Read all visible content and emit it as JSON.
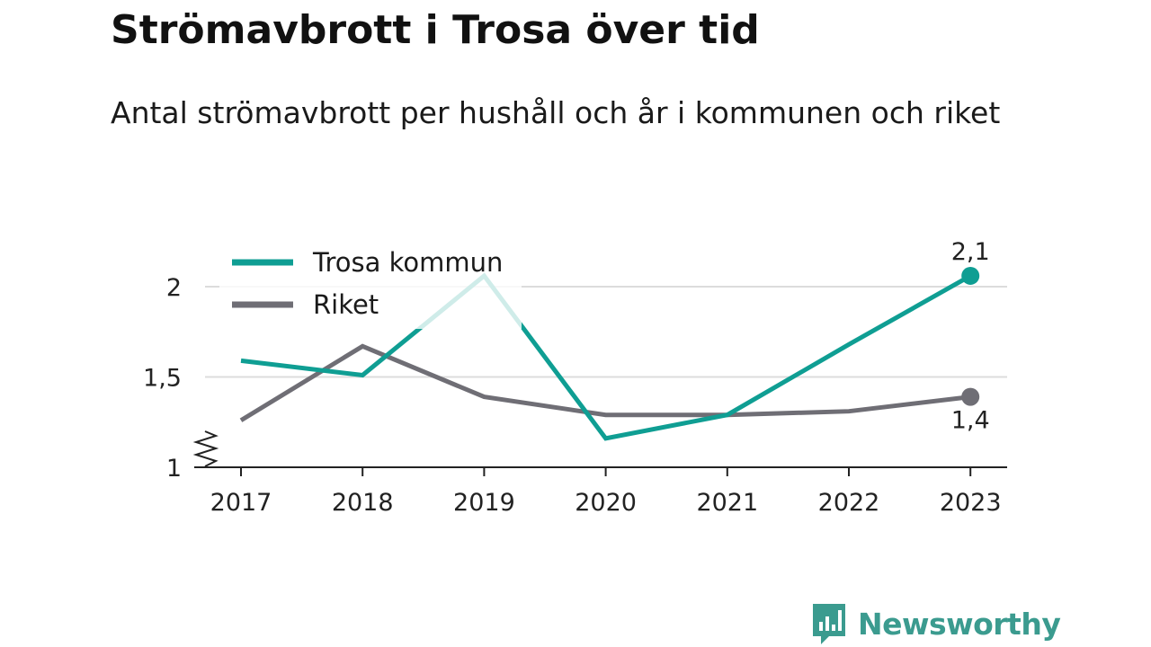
{
  "title": "Strömavbrott i Trosa över tid",
  "subtitle": "Antal strömavbrott per hushåll och år i kommunen och riket",
  "brand": {
    "name": "Newsworthy",
    "logo_icon": "bar-chart-speech-bubble-icon",
    "color": "#3b9b8f"
  },
  "chart_data": {
    "type": "line",
    "categories": [
      "2017",
      "2018",
      "2019",
      "2020",
      "2021",
      "2022",
      "2023"
    ],
    "series": [
      {
        "name": "Trosa kommun",
        "color": "#0f9e93",
        "values": [
          1.59,
          1.51,
          2.06,
          1.16,
          1.29,
          1.68,
          2.06
        ],
        "end_label": "2,1"
      },
      {
        "name": "Riket",
        "color": "#6f6e75",
        "values": [
          1.26,
          1.67,
          1.39,
          1.29,
          1.29,
          1.31,
          1.39
        ],
        "end_label": "1,4"
      }
    ],
    "y_ticks": [
      {
        "value": 1,
        "label": "1"
      },
      {
        "value": 1.5,
        "label": "1,5"
      },
      {
        "value": 2,
        "label": "2"
      }
    ],
    "ylim": [
      1,
      2.05
    ],
    "y_axis_break": true,
    "grid": true,
    "legend_position": "top-left",
    "xlabel": "",
    "ylabel": ""
  }
}
